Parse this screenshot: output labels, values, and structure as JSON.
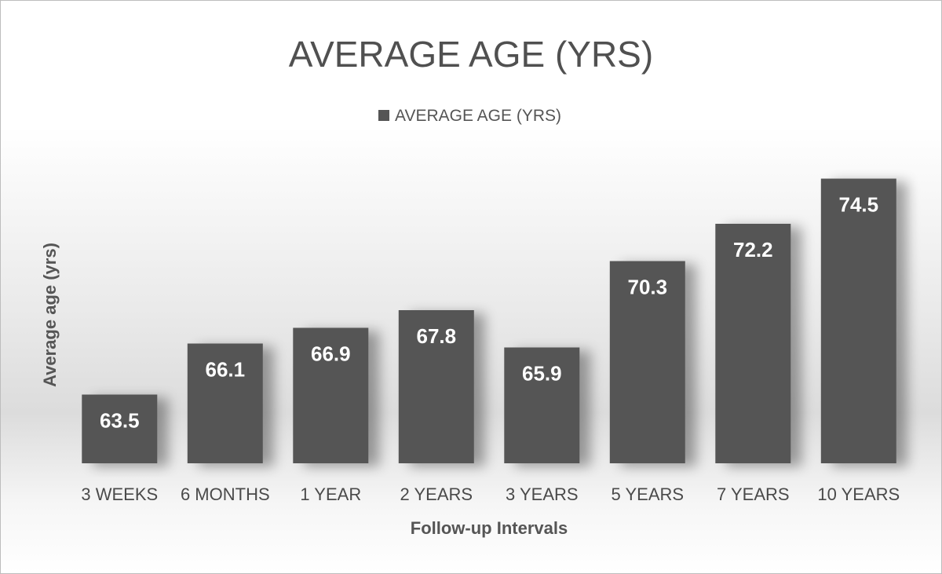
{
  "chart_data": {
    "type": "bar",
    "title": "AVERAGE AGE (YRS)",
    "xlabel": "Follow-up Intervals",
    "ylabel": "Average age (yrs)",
    "categories": [
      "3 WEEKS",
      "6 MONTHS",
      "1 YEAR",
      "2 YEARS",
      "3 YEARS",
      "5 YEARS",
      "7 YEARS",
      "10 YEARS"
    ],
    "series": [
      {
        "name": "AVERAGE AGE (YRS)",
        "values": [
          63.5,
          66.1,
          66.9,
          67.8,
          65.9,
          70.3,
          72.2,
          74.5
        ]
      }
    ],
    "data_labels": [
      "63.5",
      "66.1",
      "66.9",
      "67.8",
      "65.9",
      "70.3",
      "72.2",
      "74.5"
    ],
    "ylim": [
      60,
      76
    ],
    "grid": false,
    "legend_position": "top-center",
    "colors": {
      "bar": "#555555",
      "label": "#ffffff",
      "text": "#505050"
    }
  }
}
